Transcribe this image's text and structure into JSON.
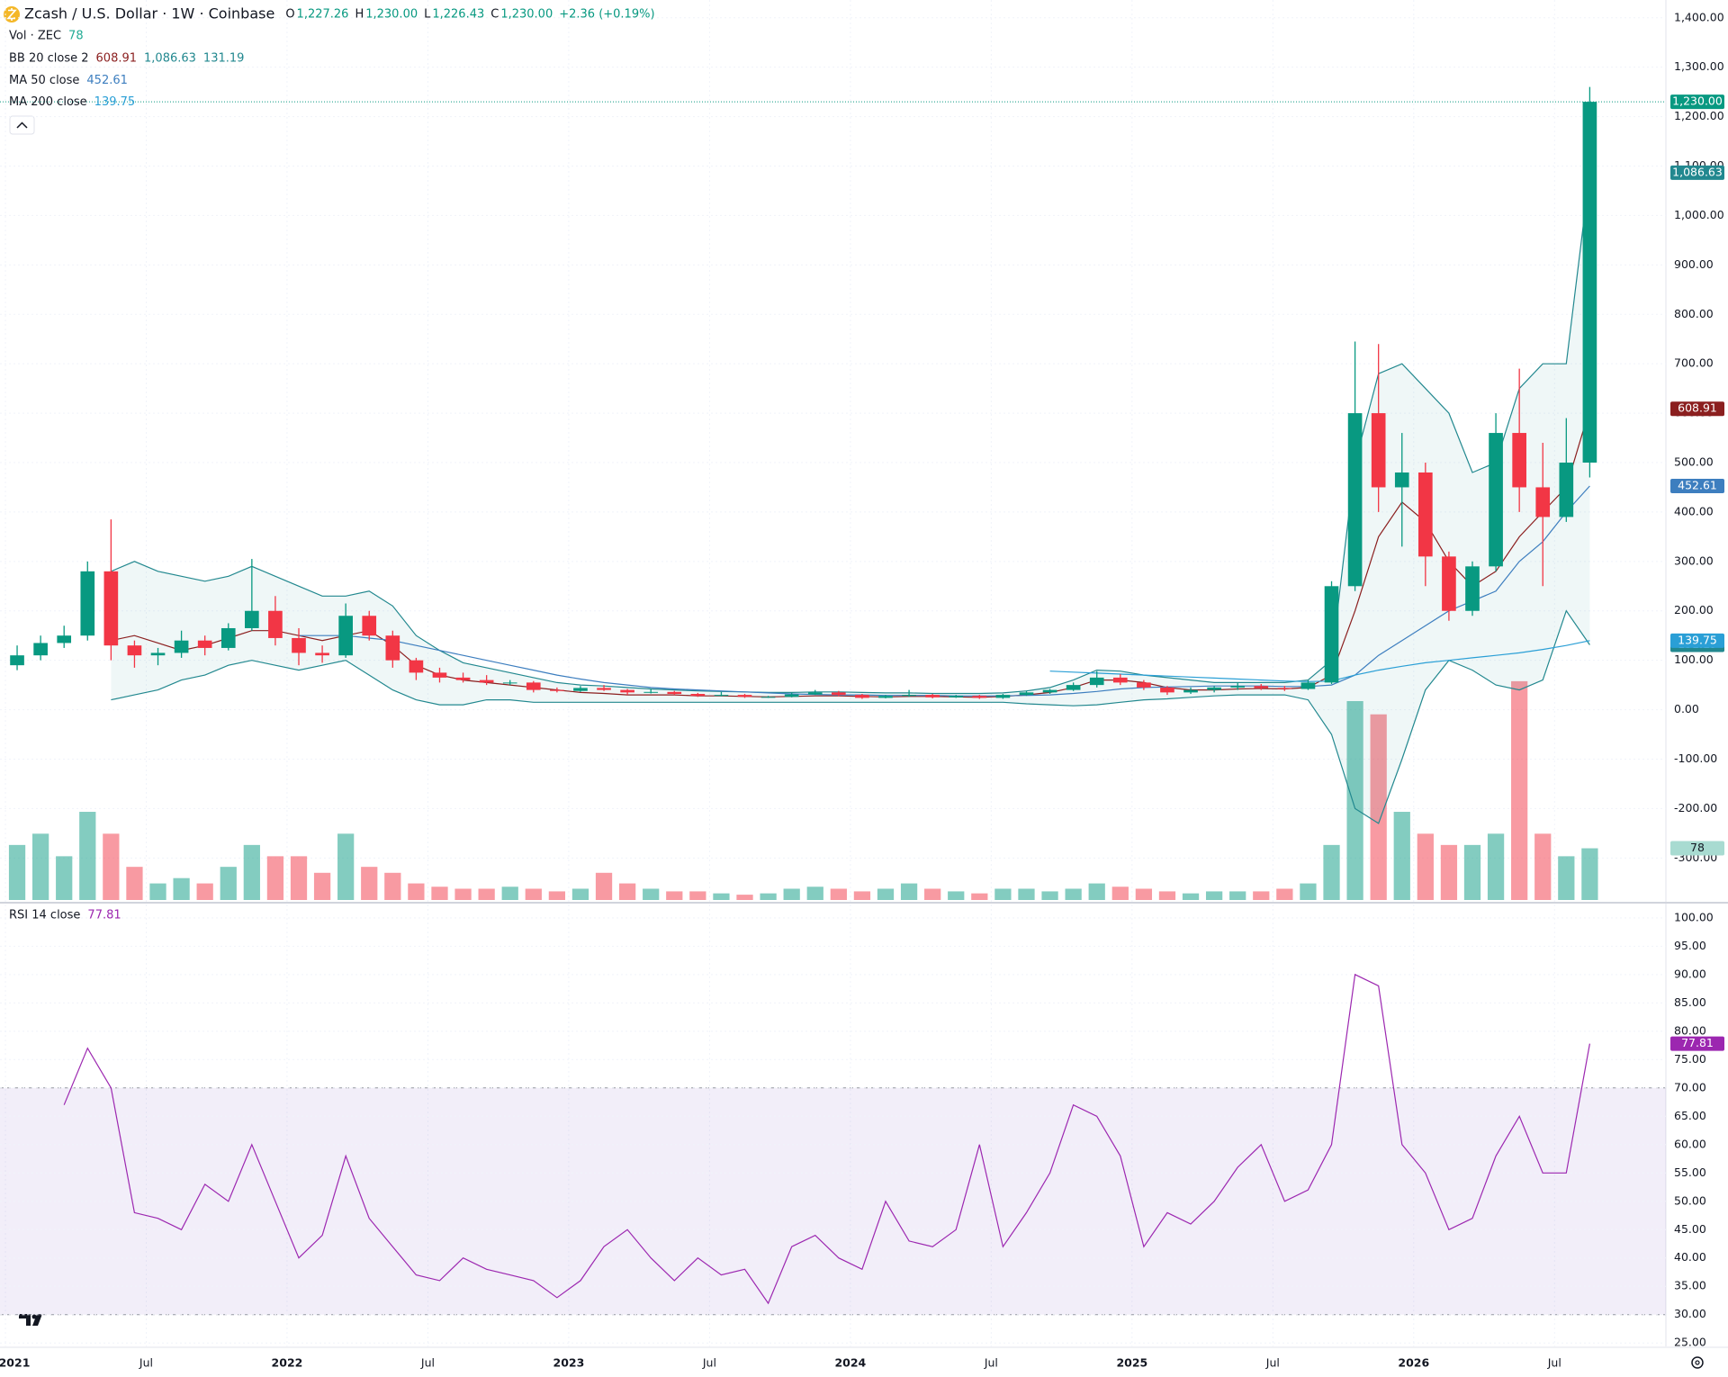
{
  "chart_data": [
    {
      "type": "candlestick",
      "title": "Zcash / U.S. Dollar · 1W · Coinbase",
      "ohlc": [
        {
          "key": "O",
          "text": "1,227.26"
        },
        {
          "key": "H",
          "text": "1,230.00"
        },
        {
          "key": "L",
          "text": "1,226.43"
        },
        {
          "key": "C",
          "text": "1,230.00"
        }
      ],
      "change": "+2.36 (+0.19%)",
      "categories": [
        "2021",
        null,
        null,
        null,
        null,
        null,
        "Jul",
        null,
        null,
        null,
        null,
        null,
        "2022",
        null,
        null,
        null,
        null,
        null,
        "Jul",
        null,
        null,
        null,
        null,
        null,
        "2023",
        null,
        null,
        null,
        null,
        null,
        "Jul",
        null,
        null,
        null,
        null,
        null,
        "2024",
        null,
        null,
        null,
        null,
        null,
        "Jul",
        null,
        null,
        null,
        null,
        null,
        "2025",
        null,
        null,
        null,
        null,
        null,
        "Jul",
        null,
        null,
        null,
        null,
        null,
        "2026",
        null,
        null,
        null,
        null,
        null,
        "Jul",
        null
      ],
      "candles": {
        "up_color": "#089981",
        "down_color": "#f23645",
        "last_label": "1,230.00",
        "open": [
          90,
          110,
          135,
          150,
          280,
          130,
          110,
          115,
          140,
          125,
          165,
          200,
          145,
          115,
          110,
          190,
          150,
          100,
          75,
          65,
          60,
          55,
          55,
          40,
          38,
          44,
          40,
          35,
          36,
          32,
          28,
          30,
          26,
          26,
          31,
          35,
          30,
          24,
          28,
          30,
          25,
          28,
          24,
          30,
          35,
          40,
          50,
          65,
          55,
          45,
          35,
          40,
          45,
          48,
          44,
          42,
          55,
          250,
          600,
          450,
          480,
          310,
          200,
          290,
          560,
          450,
          390,
          500
        ],
        "high": [
          130,
          150,
          170,
          300,
          385,
          140,
          125,
          160,
          150,
          175,
          305,
          230,
          165,
          130,
          215,
          200,
          160,
          105,
          85,
          75,
          70,
          60,
          58,
          45,
          48,
          50,
          42,
          42,
          38,
          34,
          36,
          32,
          28,
          34,
          40,
          38,
          32,
          30,
          40,
          32,
          30,
          30,
          32,
          38,
          42,
          55,
          78,
          72,
          60,
          48,
          45,
          48,
          55,
          52,
          48,
          60,
          260,
          745,
          740,
          560,
          500,
          320,
          300,
          600,
          690,
          540,
          590,
          1260
        ],
        "low": [
          80,
          100,
          125,
          140,
          100,
          85,
          90,
          105,
          110,
          120,
          160,
          130,
          90,
          95,
          105,
          140,
          85,
          60,
          55,
          55,
          50,
          50,
          35,
          35,
          36,
          38,
          30,
          33,
          30,
          26,
          27,
          24,
          24,
          25,
          30,
          27,
          22,
          23,
          26,
          23,
          24,
          22,
          22,
          28,
          32,
          38,
          45,
          50,
          40,
          30,
          32,
          35,
          40,
          40,
          38,
          40,
          52,
          240,
          400,
          330,
          250,
          180,
          190,
          280,
          400,
          250,
          380,
          470
        ],
        "close": [
          110,
          135,
          150,
          280,
          130,
          110,
          115,
          140,
          125,
          165,
          200,
          145,
          115,
          110,
          190,
          150,
          100,
          75,
          65,
          60,
          55,
          55,
          40,
          38,
          44,
          40,
          35,
          36,
          32,
          28,
          30,
          26,
          26,
          31,
          35,
          30,
          24,
          28,
          30,
          25,
          28,
          24,
          30,
          35,
          40,
          50,
          65,
          55,
          45,
          35,
          40,
          45,
          48,
          44,
          42,
          55,
          250,
          600,
          450,
          480,
          310,
          200,
          290,
          560,
          450,
          390,
          500,
          1230
        ]
      },
      "volume": {
        "name": "Vol · ZEC",
        "ylim": [
          0,
          600
        ],
        "values": [
          83,
          100,
          66,
          133,
          100,
          50,
          25,
          33,
          25,
          50,
          83,
          66,
          66,
          41,
          100,
          50,
          41,
          25,
          20,
          17,
          17,
          20,
          17,
          13,
          17,
          41,
          25,
          17,
          13,
          13,
          10,
          8,
          10,
          17,
          20,
          17,
          13,
          17,
          25,
          17,
          13,
          10,
          17,
          17,
          13,
          17,
          25,
          20,
          17,
          13,
          10,
          13,
          13,
          13,
          17,
          25,
          83,
          300,
          280,
          133,
          100,
          83,
          83,
          100,
          330,
          100,
          66,
          78
        ]
      },
      "indicators": [
        {
          "name": "BB 20 close 2",
          "fill": "rgba(34,136,143,0.07)",
          "lines": [
            {
              "color": "#8b1f1f",
              "values": [
                null,
                null,
                null,
                null,
                140,
                150,
                135,
                120,
                130,
                145,
                160,
                160,
                150,
                140,
                150,
                160,
                130,
                90,
                70,
                60,
                55,
                50,
                45,
                40,
                35,
                33,
                30,
                30,
                30,
                28,
                28,
                27,
                26,
                27,
                28,
                28,
                27,
                26,
                27,
                27,
                26,
                25,
                27,
                30,
                35,
                45,
                60,
                60,
                55,
                45,
                40,
                40,
                42,
                43,
                42,
                45,
                70,
                200,
                350,
                420,
                380,
                300,
                250,
                280,
                350,
                400,
                450,
                608.91
              ]
            },
            {
              "color": "#22888f",
              "last_label": "1,086.63",
              "values": [
                null,
                null,
                null,
                null,
                280,
                300,
                280,
                270,
                260,
                270,
                290,
                270,
                250,
                230,
                230,
                240,
                210,
                150,
                120,
                95,
                85,
                75,
                65,
                55,
                50,
                48,
                45,
                42,
                40,
                38,
                37,
                36,
                35,
                35,
                36,
                36,
                35,
                34,
                34,
                33,
                33,
                33,
                34,
                38,
                45,
                60,
                80,
                78,
                70,
                65,
                60,
                55,
                55,
                55,
                55,
                60,
                100,
                500,
                680,
                700,
                650,
                600,
                480,
                500,
                650,
                700,
                700,
                1086.63
              ]
            },
            {
              "color": "#22888f",
              "values": [
                null,
                null,
                null,
                null,
                20,
                30,
                40,
                60,
                70,
                90,
                100,
                90,
                80,
                90,
                100,
                70,
                40,
                20,
                10,
                10,
                20,
                20,
                15,
                15,
                15,
                15,
                15,
                15,
                15,
                15,
                15,
                15,
                15,
                15,
                15,
                15,
                15,
                15,
                15,
                15,
                15,
                15,
                15,
                12,
                10,
                8,
                10,
                15,
                20,
                22,
                25,
                28,
                30,
                30,
                30,
                20,
                -50,
                -200,
                -230,
                -100,
                40,
                100,
                80,
                50,
                40,
                60,
                200,
                131.19
              ]
            }
          ]
        },
        {
          "name": "MA 50 close",
          "lines": [
            {
              "color": "#3d7ebf",
              "values": [
                null,
                null,
                null,
                null,
                null,
                null,
                null,
                null,
                null,
                null,
                null,
                null,
                150,
                150,
                150,
                145,
                140,
                130,
                120,
                110,
                100,
                90,
                80,
                70,
                62,
                55,
                50,
                45,
                42,
                40,
                38,
                36,
                34,
                32,
                31,
                30,
                30,
                29,
                29,
                29,
                28,
                28,
                28,
                29,
                30,
                33,
                37,
                42,
                45,
                46,
                47,
                48,
                48,
                48,
                47,
                47,
                50,
                70,
                110,
                140,
                170,
                200,
                220,
                240,
                300,
                340,
                400,
                452.61
              ]
            }
          ]
        },
        {
          "name": "MA 200 close",
          "lines": [
            {
              "color": "#2a9fd6",
              "values": [
                null,
                null,
                null,
                null,
                null,
                null,
                null,
                null,
                null,
                null,
                null,
                null,
                null,
                null,
                null,
                null,
                null,
                null,
                null,
                null,
                null,
                null,
                null,
                null,
                null,
                null,
                null,
                null,
                null,
                null,
                null,
                null,
                null,
                null,
                null,
                null,
                null,
                null,
                null,
                null,
                null,
                null,
                null,
                null,
                78,
                76,
                74,
                72,
                70,
                68,
                66,
                64,
                62,
                60,
                58,
                57,
                58,
                70,
                80,
                88,
                95,
                100,
                105,
                110,
                115,
                122,
                130,
                139.75
              ]
            }
          ]
        }
      ],
      "ylim": [
        -385,
        1436
      ],
      "yticks": [
        {
          "value": 1400,
          "label": "1,400.00"
        },
        {
          "value": 1300,
          "label": "1,300.00"
        },
        {
          "value": 1200,
          "label": "1,200.00"
        },
        {
          "value": 1100,
          "label": "1,100.00"
        },
        {
          "value": 1000,
          "label": "1,000.00"
        },
        {
          "value": 900,
          "label": "900.00"
        },
        {
          "value": 800,
          "label": "800.00"
        },
        {
          "value": 700,
          "label": "700.00"
        },
        {
          "value": 600,
          "label": "600.00"
        },
        {
          "value": 500,
          "label": "500.00"
        },
        {
          "value": 400,
          "label": "400.00"
        },
        {
          "value": 300,
          "label": "300.00"
        },
        {
          "value": 200,
          "label": "200.00"
        },
        {
          "value": 100,
          "label": "100.00"
        },
        {
          "value": 0,
          "label": "0.00"
        },
        {
          "value": -100,
          "label": "-100.00"
        },
        {
          "value": -200,
          "label": "-200.00"
        },
        {
          "value": -300,
          "label": "-300.00"
        }
      ],
      "grid": true
    },
    {
      "type": "rsi",
      "name": "RSI 14 close",
      "color": "#9c27b0",
      "band": [
        30,
        70
      ],
      "values": [
        null,
        null,
        67,
        77,
        70,
        48,
        47,
        45,
        53,
        50,
        60,
        50,
        40,
        44,
        58,
        47,
        42,
        37,
        36,
        40,
        38,
        37,
        36,
        33,
        36,
        42,
        45,
        40,
        36,
        40,
        37,
        38,
        32,
        42,
        44,
        40,
        38,
        50,
        43,
        42,
        45,
        60,
        42,
        48,
        55,
        67,
        65,
        58,
        42,
        48,
        46,
        50,
        56,
        60,
        50,
        52,
        60,
        90,
        88,
        60,
        55,
        45,
        47,
        58,
        65,
        55,
        55,
        77.81
      ],
      "ylim": [
        24.4,
        102.2
      ],
      "yticks": [
        {
          "value": 100,
          "label": "100.00"
        },
        {
          "value": 95,
          "label": "95.00"
        },
        {
          "value": 90,
          "label": "90.00"
        },
        {
          "value": 85,
          "label": "85.00"
        },
        {
          "value": 80,
          "label": "80.00"
        },
        {
          "value": 75,
          "label": "75.00"
        },
        {
          "value": 70,
          "label": "70.00"
        },
        {
          "value": 65,
          "label": "65.00"
        },
        {
          "value": 60,
          "label": "60.00"
        },
        {
          "value": 55,
          "label": "55.00"
        },
        {
          "value": 50,
          "label": "50.00"
        },
        {
          "value": 45,
          "label": "45.00"
        },
        {
          "value": 40,
          "label": "40.00"
        },
        {
          "value": 35,
          "label": "35.00"
        },
        {
          "value": 30,
          "label": "30.00"
        },
        {
          "value": 25,
          "label": "25.00"
        }
      ],
      "grid": true
    }
  ]
}
